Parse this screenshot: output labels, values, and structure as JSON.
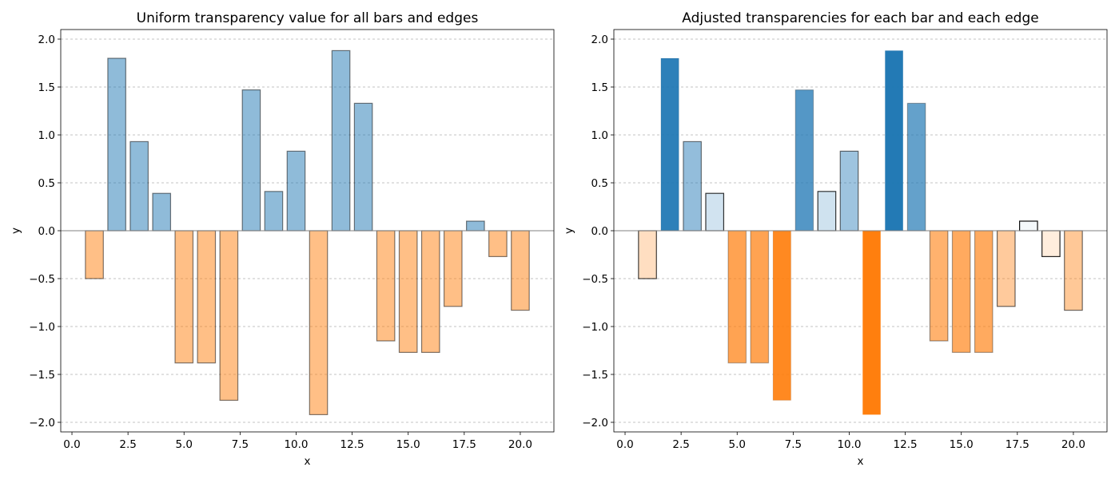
{
  "chart_data": [
    {
      "type": "bar",
      "title": "Uniform transparency value for all bars and edges",
      "xlabel": "x",
      "ylabel": "y",
      "xlim": [
        -0.5,
        21.5
      ],
      "ylim": [
        -2.1,
        2.1
      ],
      "xticks": [
        0.0,
        2.5,
        5.0,
        7.5,
        10.0,
        12.5,
        15.0,
        17.5,
        20.0
      ],
      "xtick_labels": [
        "0.0",
        "2.5",
        "5.0",
        "7.5",
        "10.0",
        "12.5",
        "15.0",
        "17.5",
        "20.0"
      ],
      "yticks": [
        -2.0,
        -1.5,
        -1.0,
        -0.5,
        0.0,
        0.5,
        1.0,
        1.5,
        2.0
      ],
      "ytick_labels": [
        "−2.0",
        "−1.5",
        "−1.0",
        "−0.5",
        "0.0",
        "0.5",
        "1.0",
        "1.5",
        "2.0"
      ],
      "grid": "y",
      "zero_line": true,
      "bar_width": 0.8,
      "positive_color": "#1f77b4",
      "negative_color": "#ff7f0e",
      "edge_color": "#000000",
      "uniform_alpha": 0.5,
      "x": [
        1,
        2,
        3,
        4,
        5,
        6,
        7,
        8,
        9,
        10,
        11,
        12,
        13,
        14,
        15,
        16,
        17,
        18,
        19,
        20
      ],
      "values": [
        -0.5,
        1.8,
        0.93,
        0.39,
        -1.38,
        -1.38,
        -1.77,
        1.47,
        0.41,
        0.83,
        -1.92,
        1.88,
        1.33,
        -1.15,
        -1.27,
        -1.27,
        -0.79,
        0.1,
        -0.27,
        -0.83
      ]
    },
    {
      "type": "bar",
      "title": "Adjusted transparencies for each bar and each edge",
      "xlabel": "x",
      "ylabel": "y",
      "xlim": [
        -0.5,
        21.5
      ],
      "ylim": [
        -2.1,
        2.1
      ],
      "xticks": [
        0.0,
        2.5,
        5.0,
        7.5,
        10.0,
        12.5,
        15.0,
        17.5,
        20.0
      ],
      "xtick_labels": [
        "0.0",
        "2.5",
        "5.0",
        "7.5",
        "10.0",
        "12.5",
        "15.0",
        "17.5",
        "20.0"
      ],
      "yticks": [
        -2.0,
        -1.5,
        -1.0,
        -0.5,
        0.0,
        0.5,
        1.0,
        1.5,
        2.0
      ],
      "ytick_labels": [
        "−2.0",
        "−1.5",
        "−1.0",
        "−0.5",
        "0.0",
        "0.5",
        "1.0",
        "1.5",
        "2.0"
      ],
      "grid": "y",
      "zero_line": true,
      "bar_width": 0.8,
      "positive_color": "#1f77b4",
      "negative_color": "#ff7f0e",
      "edge_color": "#000000",
      "alpha_mode": "abs_value_over_max",
      "x": [
        1,
        2,
        3,
        4,
        5,
        6,
        7,
        8,
        9,
        10,
        11,
        12,
        13,
        14,
        15,
        16,
        17,
        18,
        19,
        20
      ],
      "values": [
        -0.5,
        1.8,
        0.93,
        0.39,
        -1.38,
        -1.38,
        -1.77,
        1.47,
        0.41,
        0.83,
        -1.92,
        1.88,
        1.33,
        -1.15,
        -1.27,
        -1.27,
        -0.79,
        0.1,
        -0.27,
        -0.83
      ]
    }
  ]
}
